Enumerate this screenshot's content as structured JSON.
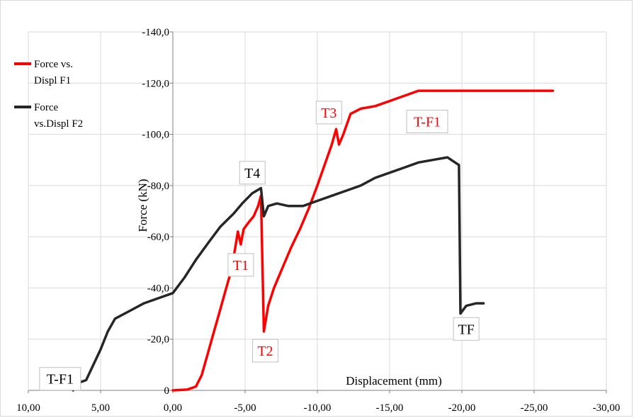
{
  "chart_data": {
    "type": "line",
    "xlabel": "Displacement (mm)",
    "ylabel": "Force (kN)",
    "xlim": [
      10,
      -30
    ],
    "ylim": [
      0,
      -140
    ],
    "grid": true,
    "legend_position": "top-left",
    "x_ticks": [
      "10,00",
      "5,00",
      "0,00",
      "-5,00",
      "-10,00",
      "-15,00",
      "-20,00",
      "-25,00",
      "-30,00"
    ],
    "y_ticks": [
      "0",
      "-20,0",
      "-40,0",
      "-60,0",
      "-80,0",
      "-100,0",
      "-120,0",
      "-140,0"
    ],
    "series": [
      {
        "name": "Force vs. Displ F1",
        "color": "#ff0000",
        "points": [
          [
            0.0,
            0.0
          ],
          [
            -1.0,
            -0.3
          ],
          [
            -1.6,
            -1.5
          ],
          [
            -2.0,
            -6
          ],
          [
            -2.4,
            -14
          ],
          [
            -2.8,
            -22
          ],
          [
            -3.2,
            -30
          ],
          [
            -3.6,
            -38
          ],
          [
            -4.0,
            -46
          ],
          [
            -4.3,
            -55
          ],
          [
            -4.5,
            -62
          ],
          [
            -4.7,
            -57
          ],
          [
            -4.9,
            -63
          ],
          [
            -5.3,
            -66
          ],
          [
            -5.6,
            -68
          ],
          [
            -5.9,
            -72
          ],
          [
            -6.1,
            -76
          ],
          [
            -6.3,
            -23
          ],
          [
            -6.6,
            -33
          ],
          [
            -7.0,
            -40
          ],
          [
            -7.6,
            -48
          ],
          [
            -8.2,
            -56
          ],
          [
            -8.8,
            -63
          ],
          [
            -9.4,
            -71
          ],
          [
            -10.0,
            -80
          ],
          [
            -10.5,
            -88
          ],
          [
            -11.0,
            -96
          ],
          [
            -11.3,
            -102
          ],
          [
            -11.5,
            -96
          ],
          [
            -11.8,
            -100
          ],
          [
            -12.3,
            -108
          ],
          [
            -13.0,
            -110
          ],
          [
            -14.0,
            -111
          ],
          [
            -15.0,
            -113
          ],
          [
            -16.0,
            -115
          ],
          [
            -17.0,
            -117
          ],
          [
            -18.0,
            -117
          ],
          [
            -20.0,
            -117
          ],
          [
            -23.0,
            -117
          ],
          [
            -26.3,
            -117
          ]
        ]
      },
      {
        "name": "Force vs.Displ F2",
        "color": "#262626",
        "points": [
          [
            6.9,
            0.0
          ],
          [
            6.5,
            -3
          ],
          [
            6.0,
            -4
          ],
          [
            5.5,
            -10
          ],
          [
            5.0,
            -16
          ],
          [
            4.5,
            -23
          ],
          [
            4.0,
            -28
          ],
          [
            3.0,
            -31
          ],
          [
            2.0,
            -34
          ],
          [
            1.0,
            -36
          ],
          [
            0.0,
            -38
          ],
          [
            -0.8,
            -44
          ],
          [
            -1.6,
            -51
          ],
          [
            -2.5,
            -58
          ],
          [
            -3.3,
            -64
          ],
          [
            -4.2,
            -69
          ],
          [
            -4.8,
            -73
          ],
          [
            -5.5,
            -77
          ],
          [
            -6.1,
            -79
          ],
          [
            -6.3,
            -68
          ],
          [
            -6.6,
            -72
          ],
          [
            -7.2,
            -73
          ],
          [
            -8.0,
            -72
          ],
          [
            -9.0,
            -72
          ],
          [
            -10.0,
            -74
          ],
          [
            -11.0,
            -76
          ],
          [
            -12.0,
            -78
          ],
          [
            -13.0,
            -80
          ],
          [
            -14.0,
            -83
          ],
          [
            -15.0,
            -85
          ],
          [
            -16.0,
            -87
          ],
          [
            -17.0,
            -89
          ],
          [
            -18.0,
            -90
          ],
          [
            -19.0,
            -91
          ],
          [
            -19.8,
            -88
          ],
          [
            -19.9,
            -30
          ],
          [
            -20.3,
            -33
          ],
          [
            -21.0,
            -34
          ],
          [
            -21.5,
            -34
          ]
        ]
      }
    ],
    "annotations": [
      {
        "text": "T1",
        "x": -4.7,
        "y": -49,
        "color": "#ff0000"
      },
      {
        "text": "T2",
        "x": -6.4,
        "y": -15.5,
        "color": "#ff0000"
      },
      {
        "text": "T3",
        "x": -10.8,
        "y": -108.5,
        "color": "#ff0000"
      },
      {
        "text": "T-F1",
        "x": -17.6,
        "y": -105,
        "color": "#ff0000"
      },
      {
        "text": "T4",
        "x": -5.5,
        "y": -85,
        "color": "#000000"
      },
      {
        "text": "TF",
        "x": -20.3,
        "y": -24,
        "color": "#000000"
      },
      {
        "text": "T-F1",
        "x": 7.8,
        "y": -4.5,
        "color": "#000000"
      }
    ]
  }
}
